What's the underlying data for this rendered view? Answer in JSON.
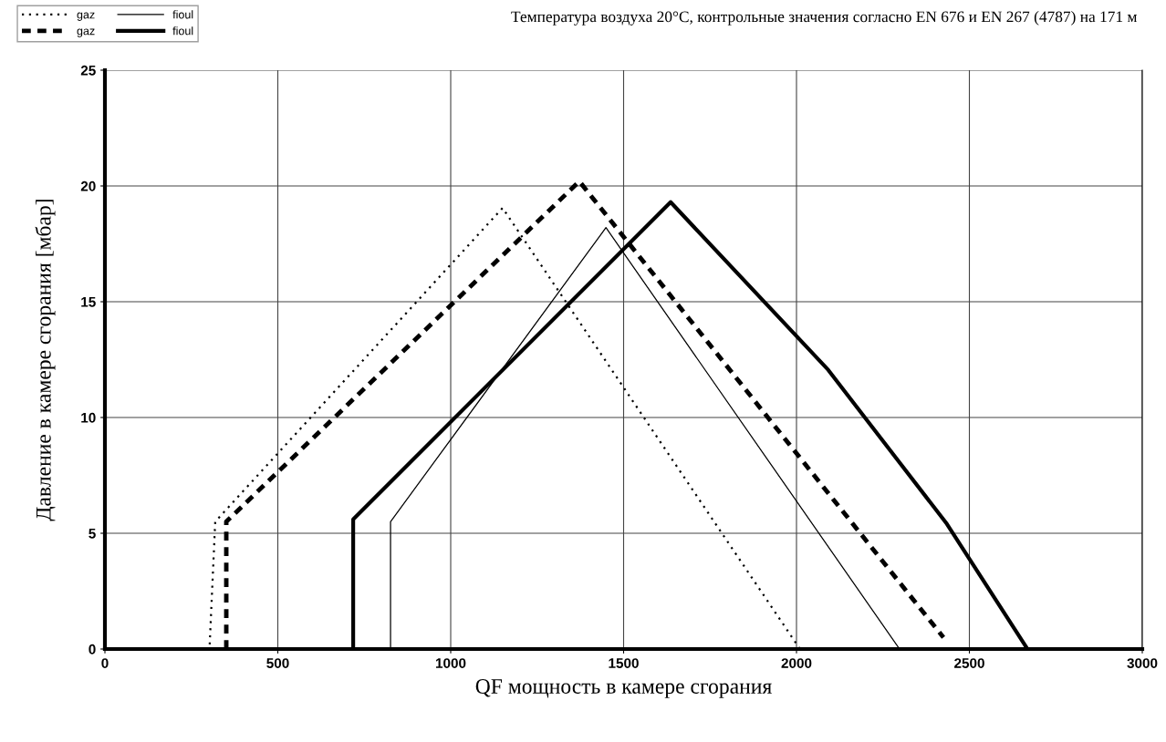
{
  "chart_data": {
    "type": "line",
    "xlabel": "QF мощность в камере сгорания",
    "ylabel": "Давление в камере сгорания [мбар]",
    "annotations": [
      "Температура воздуха 20°C, контрольные значения согласно EN 676 и EN 267 (4787) на 171 м"
    ],
    "series": [
      {
        "name": "gaz",
        "color": "#000000",
        "line_style": "dotted",
        "x": [
          303,
          319,
          1150,
          2010
        ],
        "values": [
          0.2,
          5.5,
          19.05,
          0
        ]
      },
      {
        "name": "gaz",
        "color": "#000000",
        "line_style": "dashed",
        "x": [
          351,
          351,
          1372,
          2425
        ],
        "values": [
          0,
          5.5,
          20.2,
          0.5
        ]
      },
      {
        "name": "fioul",
        "color": "#000000",
        "line_style": "solid",
        "x": [
          826,
          826,
          1449,
          2298
        ],
        "values": [
          0,
          5.5,
          18.2,
          0
        ]
      },
      {
        "name": "fioul",
        "color": "#000000",
        "line_style": "solid",
        "x": [
          718,
          718,
          1636,
          2092,
          2435,
          2668
        ],
        "values": [
          0,
          5.6,
          19.3,
          12.05,
          5.4,
          0
        ]
      }
    ],
    "xlim": [
      0,
      3000
    ],
    "xticks": [
      0,
      500,
      1000,
      1500,
      2000,
      2500,
      3000
    ],
    "ylim": [
      0,
      25
    ],
    "yticks": [
      0,
      5,
      10,
      15,
      20,
      25
    ],
    "grid": true,
    "legend": "top left"
  }
}
